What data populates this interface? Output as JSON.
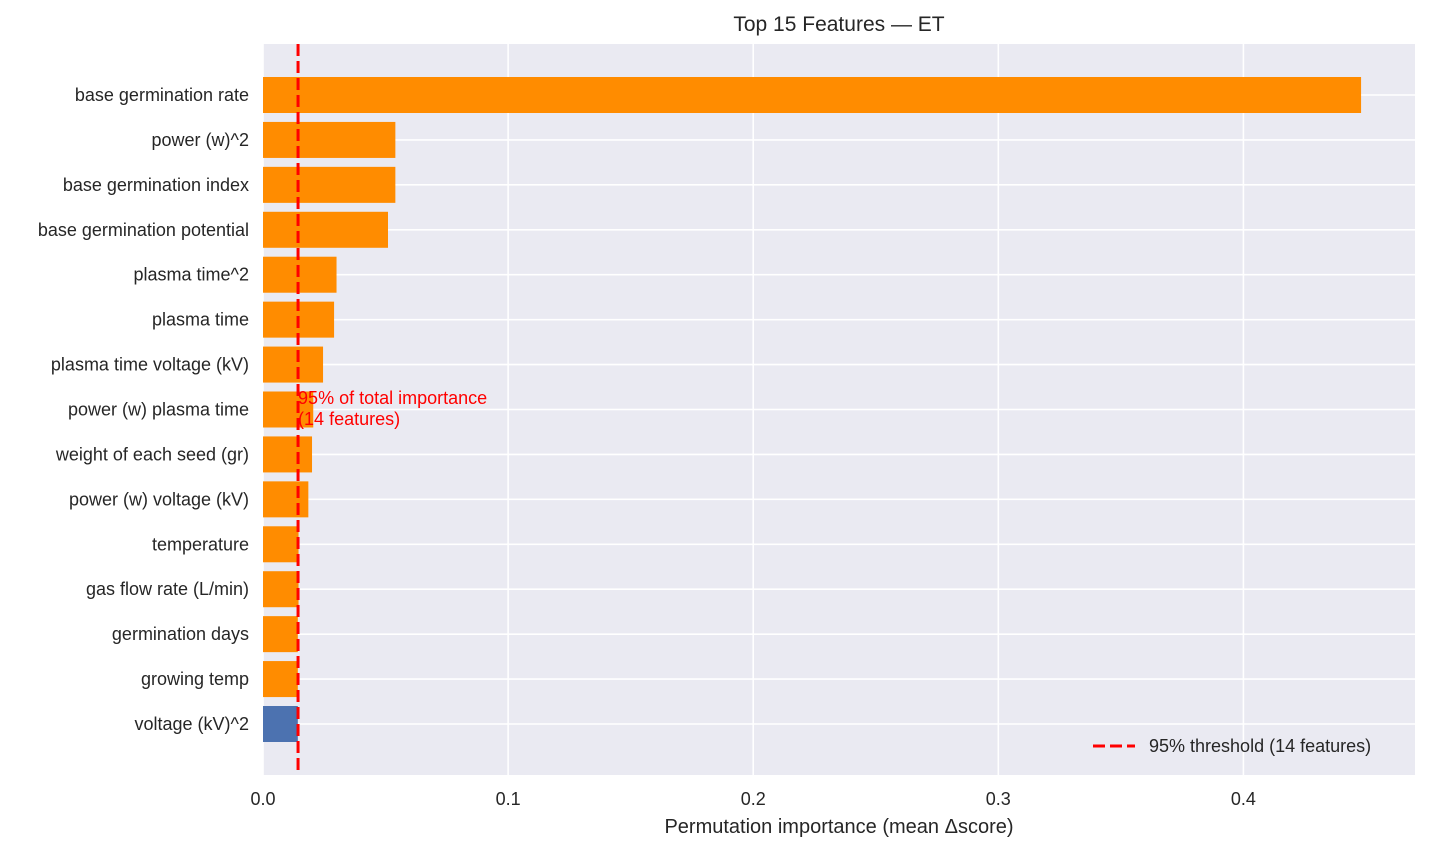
{
  "chart_data": {
    "type": "bar",
    "orientation": "horizontal",
    "title": "Top 15 Features — ET",
    "xlabel": "Permutation importance (mean Δscore)",
    "ylabel": "",
    "xlim": [
      0,
      0.47
    ],
    "xticks": [
      0.0,
      0.1,
      0.2,
      0.3,
      0.4
    ],
    "xtick_labels": [
      "0.0",
      "0.1",
      "0.2",
      "0.3",
      "0.4"
    ],
    "grid": true,
    "categories": [
      "base germination rate",
      "power (w)^2",
      "base germination index",
      "base germination potential",
      "plasma time^2",
      "plasma time",
      "plasma time voltage (kV)",
      "power (w) plasma time",
      "weight of each seed (gr)",
      "power (w) voltage (kV)",
      "temperature",
      "gas flow rate (L/min)",
      "germination days",
      "growing temp",
      "voltage (kV)^2"
    ],
    "values": [
      0.448,
      0.054,
      0.054,
      0.051,
      0.03,
      0.029,
      0.0245,
      0.0205,
      0.02,
      0.0185,
      0.0145,
      0.0145,
      0.0142,
      0.0142,
      0.0142
    ],
    "selected_color": "#ff8c00",
    "other_color": "#4c72b0",
    "selected_count": 14,
    "threshold": {
      "x": 0.0143,
      "color": "#ff0000",
      "annotation": [
        "95% of total importance",
        "(14 features)"
      ],
      "legend_label": "95% threshold (14 features)"
    },
    "legend_position": "lower right",
    "background_color": "#eaeaf2",
    "grid_color": "#ffffff"
  }
}
